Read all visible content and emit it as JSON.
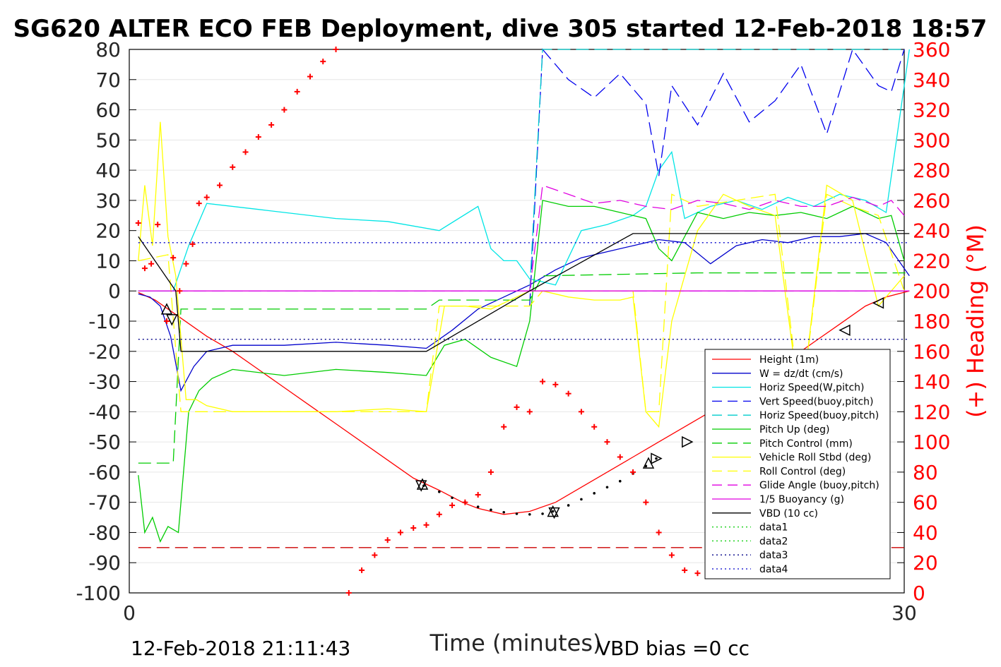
{
  "chart_data": {
    "type": "line",
    "title": "SG620 ALTER ECO FEB Deployment, dive 305 started 12-Feb-2018 18:57",
    "xlabel": "Time (minutes)",
    "ylabel_right": "(+) Heading (°M)",
    "xlim": [
      0,
      30
    ],
    "ylim": [
      -100,
      80
    ],
    "ylim_right": [
      0,
      360
    ],
    "x_ticks": [
      "0",
      "30"
    ],
    "y_ticks": [
      "80",
      "70",
      "60",
      "50",
      "40",
      "30",
      "20",
      "10",
      "0",
      "-10",
      "-20",
      "-30",
      "-40",
      "-50",
      "-60",
      "-70",
      "-80",
      "-90",
      "-100"
    ],
    "y_right_ticks": [
      "360",
      "340",
      "320",
      "300",
      "280",
      "260",
      "240",
      "220",
      "200",
      "180",
      "160",
      "140",
      "120",
      "100",
      "80",
      "60",
      "40",
      "20",
      "0"
    ],
    "grid": true,
    "legend_position": "lower-right",
    "footer_left": "12-Feb-2018 21:11:43",
    "footer_right": "VBD bias =0 cc",
    "colors": {
      "red": "#ff0000",
      "blue": "#0000cc",
      "cyan": "#00e5e5",
      "green": "#00cc00",
      "yellow": "#ffff00",
      "magenta": "#e000e0",
      "black": "#000000",
      "dark_blue": "#000088",
      "purple": "#8040ff",
      "heading": "#ff0000"
    },
    "series": [
      {
        "name": "Height (1m)",
        "color": "#ff0000",
        "dash": "solid",
        "x": [
          0.35,
          1.0,
          2.0,
          3.0,
          4.0,
          5.0,
          6.0,
          7.0,
          8.0,
          9.0,
          10.0,
          11.0,
          12.0,
          12.9,
          13.5,
          14.5,
          15.5,
          16.5,
          17.5,
          18.5,
          19.5,
          20.5,
          21.5,
          22.5,
          23.5,
          24.5,
          25.5,
          26.5,
          27.5,
          28.5,
          29.3,
          30.2
        ],
        "y": [
          -0.5,
          -3,
          -9,
          -15,
          -20,
          -26,
          -32,
          -38,
          -44,
          -50,
          -56,
          -62,
          -66,
          -70,
          -72,
          -74,
          -73,
          -70,
          -65,
          -60,
          -55,
          -50,
          -45,
          -40,
          -35,
          -29,
          -23,
          -17,
          -11,
          -5,
          -2,
          0
        ]
      },
      {
        "name": "W = dz/dt (cm/s)",
        "color": "#0000cc",
        "dash": "solid",
        "x": [
          0.35,
          0.8,
          1.2,
          1.6,
          2.0,
          2.5,
          3.0,
          4,
          6,
          8,
          10,
          11.5,
          12.5,
          13.5,
          14.5,
          15.5,
          16.5,
          17.5,
          18.5,
          19.5,
          20.5,
          21.5,
          22.5,
          23.5,
          24.5,
          25.5,
          26.5,
          27.5,
          28.5,
          29.3,
          30.2
        ],
        "y": [
          -1,
          -2,
          -5,
          -15,
          -33,
          -25,
          -20,
          -18,
          -18,
          -17,
          -18,
          -19,
          -13,
          -6,
          -2,
          2,
          7,
          11,
          13,
          15,
          17,
          16,
          9,
          15,
          17,
          16,
          18,
          18,
          19,
          16,
          5
        ]
      },
      {
        "name": "Horiz Speed(W,pitch)",
        "color": "#00e5e5",
        "dash": "solid",
        "x": [
          0.35,
          1.0,
          1.7,
          2.3,
          3,
          5,
          8,
          10,
          12,
          13.5,
          14,
          14.5,
          15,
          15.5,
          16.5,
          17.5,
          18.5,
          19.5,
          20,
          20.5,
          21,
          21.5,
          22.5,
          23.5,
          24.5,
          25.5,
          26.5,
          27.5,
          28.5,
          29.3,
          30.2
        ],
        "y": [
          0,
          0,
          0,
          15,
          29,
          27,
          24,
          23,
          20,
          28,
          14,
          10,
          10,
          4,
          2,
          20,
          22,
          25,
          28,
          40,
          46,
          24,
          28,
          30,
          27,
          31,
          28,
          32,
          30,
          26,
          100
        ]
      },
      {
        "name": "Vert Speed(buoy,pitch)",
        "color": "#0000ee",
        "dash": "dashed",
        "x": [
          15.5,
          16,
          17,
          18,
          19,
          20,
          20.5,
          21,
          22,
          23,
          24,
          25,
          26,
          27,
          28,
          29,
          29.5,
          30
        ],
        "y": [
          -5,
          95,
          70,
          64,
          72,
          62,
          38,
          68,
          55,
          72,
          56,
          63,
          75,
          52,
          80,
          68,
          66,
          100
        ]
      },
      {
        "name": "Horiz Speed(buoy,pitch)",
        "color": "#00cccc",
        "dash": "dashed",
        "x": [
          15.5,
          16,
          17,
          18,
          20,
          21.5,
          23,
          25,
          27,
          29,
          30
        ],
        "y": [
          0,
          100,
          80,
          80,
          80,
          80,
          80,
          80,
          80,
          80,
          100
        ]
      },
      {
        "name": "Pitch Up (deg)",
        "color": "#00cc00",
        "dash": "solid",
        "x": [
          0.35,
          0.6,
          0.9,
          1.2,
          1.5,
          1.9,
          2.3,
          2.7,
          3.2,
          4,
          6,
          8,
          10,
          11.5,
          12.2,
          13,
          14,
          15,
          15.5,
          16,
          17,
          18,
          19,
          20,
          20.5,
          21,
          22,
          23,
          24,
          25,
          26,
          27,
          28,
          29,
          29.5,
          30
        ],
        "y": [
          -61,
          -80,
          -75,
          -83,
          -78,
          -80,
          -40,
          -33,
          -29,
          -26,
          -28,
          -26,
          -27,
          -28,
          -18,
          -16,
          -22,
          -25,
          -10,
          30,
          28,
          28,
          26,
          24,
          14,
          10,
          26,
          24,
          26,
          25,
          26,
          24,
          28,
          24,
          25,
          10
        ]
      },
      {
        "name": "Pitch Control (mm)",
        "color": "#00cc00",
        "dash": "dashed",
        "x": [
          0.35,
          1.7,
          2.0,
          6,
          11.5,
          12,
          15.5,
          16,
          22,
          30.2
        ],
        "y": [
          -57,
          -57,
          -6,
          -6,
          -6,
          -3,
          -3,
          5,
          6,
          6
        ]
      },
      {
        "name": "Vehicle Roll Stbd (deg)",
        "color": "#ffff00",
        "dash": "solid",
        "x": [
          0.35,
          0.6,
          0.9,
          1.2,
          1.5,
          1.8,
          2.2,
          2.6,
          3,
          4,
          6,
          8,
          10,
          11.5,
          12.2,
          13,
          14,
          15,
          15.5,
          16,
          17,
          18,
          19,
          19.5,
          20,
          20.5,
          21,
          22,
          23,
          24,
          25,
          26,
          27,
          28,
          29,
          30
        ],
        "y": [
          10,
          35,
          15,
          56,
          18,
          5,
          -36,
          -36,
          -38,
          -40,
          -40,
          -40,
          -39,
          -40,
          -5,
          -5,
          -6,
          -2,
          0,
          0,
          -2,
          -3,
          -3,
          -2,
          -40,
          -45,
          -10,
          20,
          32,
          28,
          25,
          -40,
          35,
          30,
          -5,
          5
        ]
      },
      {
        "name": "Roll Control (deg)",
        "color": "#ffff00",
        "dash": "dashed",
        "x": [
          0.35,
          1.5,
          2.0,
          6,
          11.5,
          12,
          15.5,
          16,
          19.5,
          20,
          20.5,
          21,
          22,
          25,
          26,
          27,
          28,
          29,
          30
        ],
        "y": [
          10,
          12,
          -40,
          -40,
          -40,
          -5,
          -5,
          0,
          0,
          -40,
          -40,
          32,
          28,
          32,
          -40,
          32,
          28,
          25,
          0
        ]
      },
      {
        "name": "Glide Angle (buoy,pitch)",
        "color": "#e000e0",
        "dash": "dashed",
        "x": [
          15.5,
          16,
          17,
          18,
          19,
          20,
          21,
          22,
          23,
          24,
          25,
          26,
          27,
          28,
          29,
          29.5,
          30
        ],
        "y": [
          0,
          35,
          32,
          29,
          30,
          28,
          27,
          30,
          29,
          27,
          30,
          28,
          28,
          31,
          28,
          30,
          25
        ]
      },
      {
        "name": "1/5 Buoyancy (g)",
        "color": "#e000e0",
        "dash": "solid",
        "x": [
          0.35,
          30.2
        ],
        "y": [
          0,
          0
        ]
      },
      {
        "name": "VBD (10 cc)",
        "color": "#000000",
        "dash": "solid",
        "x": [
          0.35,
          1.8,
          2.0,
          6,
          10,
          11.5,
          15.5,
          19.5,
          22,
          30.2
        ],
        "y": [
          18,
          0,
          -20,
          -20,
          -20,
          -20,
          0,
          19,
          19,
          19
        ]
      },
      {
        "name": "data1",
        "color": "#00cc00",
        "dash": "dotted",
        "x": [],
        "y": []
      },
      {
        "name": "data2",
        "color": "#00cc00",
        "dash": "dotted",
        "x": [],
        "y": []
      },
      {
        "name": "data3",
        "color": "#000088",
        "dash": "dotted",
        "x": [
          0.35,
          30.2
        ],
        "y": [
          -16,
          -16
        ]
      },
      {
        "name": "data4",
        "color": "#0000cc",
        "dash": "dotted",
        "x": [
          0.35,
          30.2
        ],
        "y": [
          16,
          16
        ]
      }
    ],
    "extra_lines": [
      {
        "color": "#cc0000",
        "dash": "dashed",
        "x": [
          0.35,
          30.2
        ],
        "y": [
          -85,
          -85
        ]
      },
      {
        "color": "#8040ff",
        "dash": "dashed",
        "x": [
          0.35,
          30.2
        ],
        "y": [
          0,
          0
        ]
      }
    ],
    "heading_points": {
      "color": "#ff0000",
      "x": [
        0.35,
        0.6,
        0.85,
        1.1,
        1.45,
        1.7,
        1.95,
        2.2,
        2.45,
        2.7,
        3.0,
        3.5,
        4.0,
        4.5,
        5.0,
        5.5,
        6.0,
        6.5,
        7.0,
        7.5,
        8.0,
        8.5,
        9.0,
        9.5,
        10.0,
        10.5,
        11.0,
        11.5,
        12.0,
        12.5,
        13.0,
        13.5,
        14.0,
        14.5,
        15.0,
        15.5,
        16.0,
        16.5,
        17.0,
        17.5,
        18.0,
        18.5,
        19.0,
        19.5,
        20.0,
        20.5,
        21.0,
        21.5,
        22.0,
        22.5,
        23.0,
        23.5,
        24.0,
        24.5,
        25.0,
        25.5,
        26.0,
        26.5,
        27.0,
        27.5,
        28.0,
        28.5,
        29.0
      ],
      "y": [
        245,
        215,
        218,
        244,
        180,
        222,
        200,
        218,
        231,
        258,
        262,
        270,
        282,
        292,
        302,
        310,
        320,
        332,
        342,
        352,
        360,
        0,
        15,
        25,
        35,
        40,
        43,
        45,
        52,
        58,
        60,
        65,
        80,
        110,
        123,
        120,
        140,
        138,
        132,
        120,
        110,
        100,
        90,
        80,
        60,
        40,
        25,
        15,
        13,
        15,
        25,
        40,
        55,
        62,
        55,
        40,
        30,
        20,
        15,
        15,
        30,
        50,
        55
      ]
    },
    "triangles": [
      {
        "x": 1.45,
        "y": -6,
        "dir": "up"
      },
      {
        "x": 1.65,
        "y": -9.5,
        "dir": "down"
      },
      {
        "x": 11.3,
        "y": -64.5,
        "dir": "down"
      },
      {
        "x": 11.35,
        "y": -64,
        "dir": "up"
      },
      {
        "x": 16.4,
        "y": -73,
        "dir": "up"
      },
      {
        "x": 16.45,
        "y": -73.5,
        "dir": "down"
      },
      {
        "x": 20.4,
        "y": -55.5,
        "dir": "right"
      },
      {
        "x": 20.1,
        "y": -57,
        "dir": "up"
      },
      {
        "x": 21.6,
        "y": -50,
        "dir": "right"
      },
      {
        "x": 22.8,
        "y": -42.5,
        "dir": "right"
      },
      {
        "x": 24.0,
        "y": -35.5,
        "dir": "right"
      },
      {
        "x": 25.2,
        "y": -27.5,
        "dir": "left"
      },
      {
        "x": 26.4,
        "y": -21.5,
        "dir": "left"
      },
      {
        "x": 27.7,
        "y": -13,
        "dir": "left"
      },
      {
        "x": 29.0,
        "y": -4,
        "dir": "left"
      }
    ],
    "dotted_curve": {
      "color": "#000000",
      "x": [
        11.4,
        12.0,
        12.5,
        13.0,
        13.5,
        14.0,
        14.5,
        15.0,
        15.5,
        16.0,
        16.4,
        17.0,
        17.5,
        18.0,
        18.5,
        19.0,
        19.5,
        20.0,
        20.4
      ],
      "y": [
        -64.5,
        -66.5,
        -68.5,
        -70,
        -71.5,
        -72.5,
        -73.3,
        -73.8,
        -74,
        -73.8,
        -73,
        -71,
        -69,
        -67,
        -65,
        -63,
        -60.5,
        -58,
        -55.5
      ]
    }
  }
}
